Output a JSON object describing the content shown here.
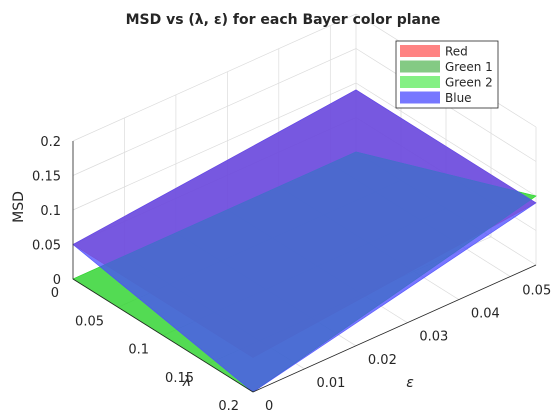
{
  "chart_data": {
    "type": "surface3d",
    "title": "MSD vs (λ, ε) for each Bayer color plane",
    "zlabel": "MSD",
    "xlabel": "λ",
    "ylabel": "ε",
    "lambda_ticks": [
      "0",
      "0.05",
      "0.1",
      "0.15",
      "0.2"
    ],
    "eps_ticks": [
      "0",
      "0.01",
      "0.02",
      "0.03",
      "0.04",
      "0.05"
    ],
    "msd_ticks": [
      "0",
      "0.05",
      "0.1",
      "0.15",
      "0.2"
    ],
    "lambda_range": [
      0,
      0.2
    ],
    "eps_range": [
      0,
      0.055
    ],
    "msd_range": [
      0,
      0.2
    ],
    "grid": true,
    "legend_position": "top-right",
    "series": [
      {
        "name": "Red",
        "color": "#ff5a5a",
        "opacity": 0.75,
        "lambda": [
          0,
          0.2
        ],
        "eps": [
          0,
          0.055
        ],
        "msd": [
          [
            0.05,
            0.09
          ],
          [
            0.05,
            0.09
          ]
        ]
      },
      {
        "name": "Green 1",
        "color": "#32a632",
        "opacity": 0.6,
        "lambda": [
          0,
          0.2
        ],
        "eps": [
          0,
          0.055
        ],
        "msd": [
          [
            0.0,
            0.0
          ],
          [
            0.0,
            0.1
          ]
        ]
      },
      {
        "name": "Green 2",
        "color": "#32e632",
        "opacity": 0.6,
        "lambda": [
          0,
          0.2
        ],
        "eps": [
          0,
          0.055
        ],
        "msd": [
          [
            0.0,
            0.0
          ],
          [
            0.0,
            0.1
          ]
        ]
      },
      {
        "name": "Blue",
        "color": "#4a4aff",
        "opacity": 0.75,
        "lambda": [
          0,
          0.2
        ],
        "eps": [
          0,
          0.055
        ],
        "msd": [
          [
            0.05,
            0.09
          ],
          [
            0.0,
            0.09
          ]
        ]
      }
    ]
  }
}
